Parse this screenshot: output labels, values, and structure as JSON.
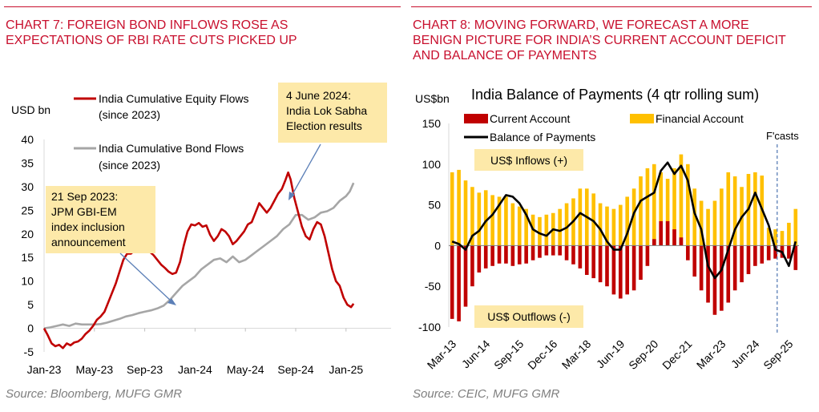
{
  "chart_data": [
    {
      "type": "line",
      "title": "CHART 7: FOREIGN BOND INFLOWS ROSE AS EXPECTATIONS OF RBI RATE CUTS PICKED UP",
      "ylabel": "USD bn",
      "ylim": [
        -5,
        40
      ],
      "yticks": [
        "-5",
        "0",
        "5",
        "10",
        "15",
        "20",
        "25",
        "30",
        "35",
        "40"
      ],
      "xticks": [
        "Jan-23",
        "May-23",
        "Sep-23",
        "Jan-24",
        "May-24",
        "Sep-24",
        "Jan-25"
      ],
      "series": [
        {
          "name": "India Cumulative Equity Flows (since 2023)",
          "legend_line1": "India Cumulative Equity Flows",
          "legend_line2": "(since 2023)",
          "color": "#c00000",
          "points": [
            [
              0,
              0
            ],
            [
              0.3,
              -1.5
            ],
            [
              0.6,
              -3.2
            ],
            [
              0.9,
              -3.8
            ],
            [
              1.2,
              -3.5
            ],
            [
              1.5,
              -4.2
            ],
            [
              1.8,
              -3.2
            ],
            [
              2.1,
              -3.6
            ],
            [
              2.4,
              -3.0
            ],
            [
              2.7,
              -2.8
            ],
            [
              3.0,
              -2.2
            ],
            [
              3.3,
              -1.2
            ],
            [
              3.6,
              -0.5
            ],
            [
              3.9,
              0.5
            ],
            [
              4.2,
              1.8
            ],
            [
              4.5,
              2.5
            ],
            [
              4.8,
              3.5
            ],
            [
              5.1,
              5.5
            ],
            [
              5.4,
              7.5
            ],
            [
              5.7,
              9.5
            ],
            [
              6.0,
              12.0
            ],
            [
              6.3,
              14.5
            ],
            [
              6.6,
              15.8
            ],
            [
              6.9,
              15.8
            ],
            [
              7.2,
              16.5
            ],
            [
              7.5,
              16.8
            ],
            [
              7.8,
              17.5
            ],
            [
              8.1,
              16.8
            ],
            [
              8.4,
              16.2
            ],
            [
              8.7,
              15.5
            ],
            [
              9.0,
              14.5
            ],
            [
              9.3,
              13.5
            ],
            [
              9.6,
              12.8
            ],
            [
              9.9,
              12.0
            ],
            [
              10.2,
              11.5
            ],
            [
              10.5,
              11.8
            ],
            [
              10.8,
              14.0
            ],
            [
              11.1,
              17.5
            ],
            [
              11.4,
              20.5
            ],
            [
              11.7,
              22.0
            ],
            [
              12.0,
              21.8
            ],
            [
              12.3,
              22.3
            ],
            [
              12.6,
              21.5
            ],
            [
              12.9,
              21.8
            ],
            [
              13.2,
              19.8
            ],
            [
              13.5,
              18.5
            ],
            [
              13.8,
              19.5
            ],
            [
              14.1,
              21.0
            ],
            [
              14.4,
              20.5
            ],
            [
              14.7,
              19.5
            ],
            [
              15.0,
              17.8
            ],
            [
              15.3,
              18.5
            ],
            [
              15.6,
              19.5
            ],
            [
              15.9,
              20.5
            ],
            [
              16.2,
              22.0
            ],
            [
              16.5,
              22.5
            ],
            [
              16.8,
              24.5
            ],
            [
              17.1,
              26.5
            ],
            [
              17.4,
              25.5
            ],
            [
              17.7,
              24.5
            ],
            [
              18.0,
              25.5
            ],
            [
              18.3,
              27.0
            ],
            [
              18.6,
              28.5
            ],
            [
              18.9,
              29.5
            ],
            [
              19.2,
              31.5
            ],
            [
              19.4,
              33.0
            ],
            [
              19.6,
              31.5
            ],
            [
              19.9,
              27.5
            ],
            [
              20.2,
              24.5
            ],
            [
              20.5,
              21.5
            ],
            [
              20.8,
              19.5
            ],
            [
              21.1,
              18.8
            ],
            [
              21.4,
              21.0
            ],
            [
              21.7,
              22.5
            ],
            [
              22.0,
              22.0
            ],
            [
              22.3,
              19.5
            ],
            [
              22.6,
              16.0
            ],
            [
              22.9,
              12.5
            ],
            [
              23.2,
              10.0
            ],
            [
              23.5,
              9.0
            ],
            [
              23.8,
              6.5
            ],
            [
              24.1,
              5.0
            ],
            [
              24.4,
              4.5
            ],
            [
              24.6,
              5.2
            ]
          ]
        },
        {
          "name": "India Cumulative Bond Flows (since 2023)",
          "legend_line1": "India Cumulative Bond Flows",
          "legend_line2": "(since 2023)",
          "color": "#a6a6a6",
          "points": [
            [
              0,
              0
            ],
            [
              0.5,
              0.2
            ],
            [
              1.0,
              0.5
            ],
            [
              1.5,
              0.8
            ],
            [
              2.0,
              0.5
            ],
            [
              2.5,
              1.0
            ],
            [
              3.0,
              0.8
            ],
            [
              3.5,
              0.8
            ],
            [
              4.0,
              0.8
            ],
            [
              4.5,
              0.9
            ],
            [
              5.0,
              1.2
            ],
            [
              5.5,
              1.6
            ],
            [
              6.0,
              2.0
            ],
            [
              6.5,
              2.5
            ],
            [
              7.0,
              2.8
            ],
            [
              7.5,
              3.2
            ],
            [
              8.0,
              3.5
            ],
            [
              8.5,
              3.8
            ],
            [
              9.0,
              4.2
            ],
            [
              9.5,
              4.8
            ],
            [
              10.0,
              6.0
            ],
            [
              10.5,
              7.5
            ],
            [
              11.0,
              9.0
            ],
            [
              11.5,
              10.0
            ],
            [
              12.0,
              11.0
            ],
            [
              12.5,
              12.5
            ],
            [
              13.0,
              13.5
            ],
            [
              13.5,
              14.5
            ],
            [
              14.0,
              14.8
            ],
            [
              14.5,
              14.0
            ],
            [
              15.0,
              15.2
            ],
            [
              15.5,
              14.0
            ],
            [
              16.0,
              14.5
            ],
            [
              16.5,
              15.5
            ],
            [
              17.0,
              16.5
            ],
            [
              17.5,
              17.5
            ],
            [
              18.0,
              18.5
            ],
            [
              18.5,
              19.5
            ],
            [
              19.0,
              21.0
            ],
            [
              19.5,
              22.0
            ],
            [
              20.0,
              24.0
            ],
            [
              20.5,
              24.0
            ],
            [
              21.0,
              23.0
            ],
            [
              21.5,
              23.5
            ],
            [
              22.0,
              24.5
            ],
            [
              22.5,
              24.8
            ],
            [
              23.0,
              25.5
            ],
            [
              23.5,
              27.0
            ],
            [
              24.0,
              28.0
            ],
            [
              24.3,
              29.0
            ],
            [
              24.6,
              30.8
            ]
          ]
        }
      ],
      "annotations": [
        {
          "text": [
            "4 June 2024:",
            "India Lok Sabha",
            "Election results"
          ]
        },
        {
          "text": [
            "21 Sep 2023:",
            "JPM GBI-EM",
            "index inclusion",
            "announcement"
          ]
        }
      ],
      "source": "Source: Bloomberg, MUFG GMR"
    },
    {
      "type": "bar",
      "title": "CHART 8: MOVING FORWARD, WE FORECAST A MORE BENIGN PICTURE FOR INDIA’S CURRENT ACCOUNT DEFICIT AND BALANCE OF PAYMENTS",
      "subtitle": "India Balance of Payments (4 qtr rolling sum)",
      "ylabel": "US$bn",
      "ylim": [
        -100,
        150
      ],
      "yticks": [
        "-100",
        "-50",
        "0",
        "50",
        "100",
        "150"
      ],
      "xticks": [
        "Mar-13",
        "Jun-14",
        "Sep-15",
        "Dec-16",
        "Mar-18",
        "Jun-19",
        "Sep-20",
        "Dec-21",
        "Mar-23",
        "Jun-24",
        "Sep-25"
      ],
      "quarters": 52,
      "forecast_from_index": 49,
      "forecast_label": "F'casts",
      "inflow_label": "US$ Inflows (+)",
      "outflow_label": "US$ Outflows (-)",
      "legend": {
        "current_account": "Current Account",
        "financial_account": "Financial Account",
        "balance": "Balance of Payments"
      },
      "series": [
        {
          "name": "Current Account",
          "color": "#c00000",
          "values": [
            -90,
            -93,
            -75,
            -50,
            -33,
            -28,
            -25,
            -22,
            -22,
            -25,
            -23,
            -22,
            -18,
            -15,
            -12,
            -12,
            -12,
            -18,
            -23,
            -28,
            -36,
            -40,
            -45,
            -50,
            -60,
            -65,
            -60,
            -55,
            -42,
            -25,
            8,
            30,
            30,
            20,
            10,
            -18,
            -38,
            -55,
            -70,
            -85,
            -80,
            -70,
            -55,
            -45,
            -35,
            -25,
            -22,
            -18,
            -16,
            -15,
            -16,
            -30
          ]
        },
        {
          "name": "Financial Account",
          "color": "#ffc000",
          "values": [
            90,
            93,
            80,
            72,
            65,
            68,
            62,
            60,
            60,
            52,
            48,
            45,
            38,
            35,
            38,
            40,
            45,
            52,
            58,
            70,
            70,
            64,
            52,
            48,
            45,
            50,
            60,
            70,
            85,
            95,
            100,
            90,
            82,
            95,
            112,
            100,
            70,
            55,
            45,
            55,
            70,
            90,
            85,
            72,
            88,
            90,
            86,
            22,
            20,
            18,
            28,
            45
          ]
        },
        {
          "name": "Balance of Payments",
          "color": "#000000",
          "values": [
            5,
            2,
            -5,
            12,
            18,
            30,
            38,
            50,
            62,
            60,
            52,
            38,
            20,
            15,
            12,
            20,
            18,
            22,
            30,
            40,
            35,
            30,
            20,
            5,
            -5,
            -5,
            15,
            40,
            55,
            60,
            65,
            92,
            102,
            88,
            98,
            80,
            40,
            20,
            -25,
            -40,
            -30,
            -5,
            20,
            35,
            45,
            65,
            45,
            25,
            -5,
            -8,
            -25,
            5
          ]
        }
      ],
      "source": "Source: CEIC, MUFG GMR"
    }
  ]
}
